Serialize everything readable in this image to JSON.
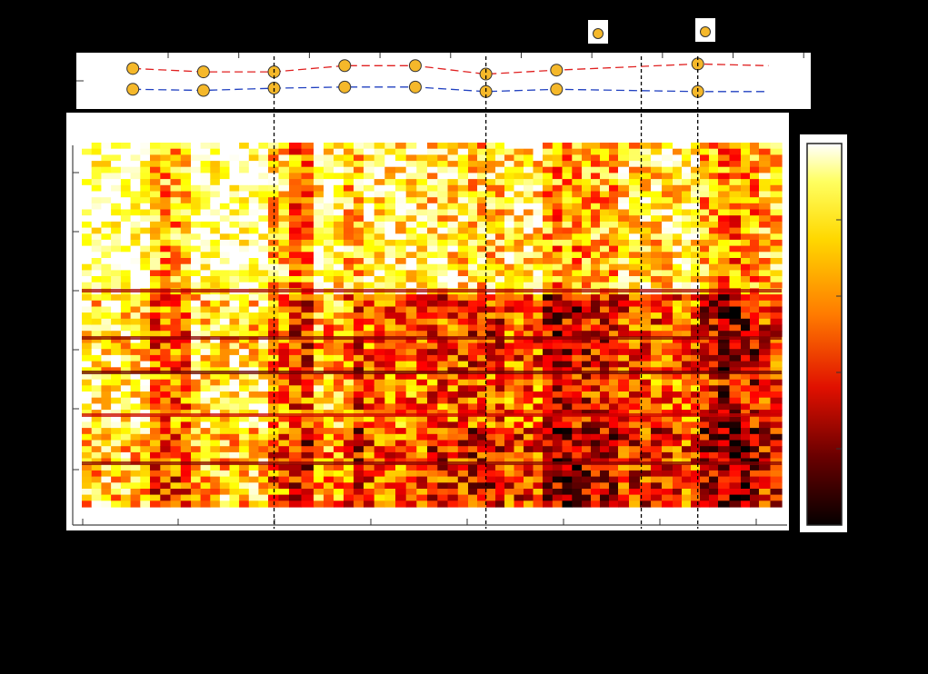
{
  "chart_data": [
    {
      "type": "line",
      "title": "",
      "xlabel": "",
      "ylabel": "",
      "x": [
        1,
        2,
        3,
        4,
        5,
        6,
        7,
        8,
        9,
        10
      ],
      "xlim": [
        0.2,
        10.6
      ],
      "ylim": [
        0,
        1
      ],
      "series": [
        {
          "color": "#e02020",
          "marker": "circle",
          "values": [
            0.72,
            0.66,
            0.66,
            0.77,
            0.77,
            0.62,
            0.69,
            null,
            0.8,
            0.77
          ],
          "marked": [
            true,
            true,
            true,
            true,
            true,
            true,
            true,
            false,
            true,
            false
          ]
        },
        {
          "color": "#2040c0",
          "marker": "circle",
          "values": [
            0.35,
            0.33,
            0.37,
            0.39,
            0.39,
            0.31,
            0.35,
            null,
            0.31,
            0.31
          ],
          "marked": [
            true,
            true,
            true,
            true,
            true,
            true,
            true,
            false,
            true,
            false
          ]
        }
      ],
      "legend": {
        "placement": "top-right",
        "marker_color": "#f5b82a"
      },
      "vertical_dashed_lines_x": [
        3,
        6,
        8.2,
        9.0
      ]
    },
    {
      "type": "heatmap",
      "title": "",
      "xlabel": "",
      "ylabel": "",
      "colormap": "hot",
      "colorbar": {
        "placement": "right",
        "min": 0,
        "max": 1,
        "ticks": 5
      },
      "vertical_dashed_lines_x": [
        3,
        6,
        8.2,
        9.0
      ],
      "note": ""
    }
  ]
}
